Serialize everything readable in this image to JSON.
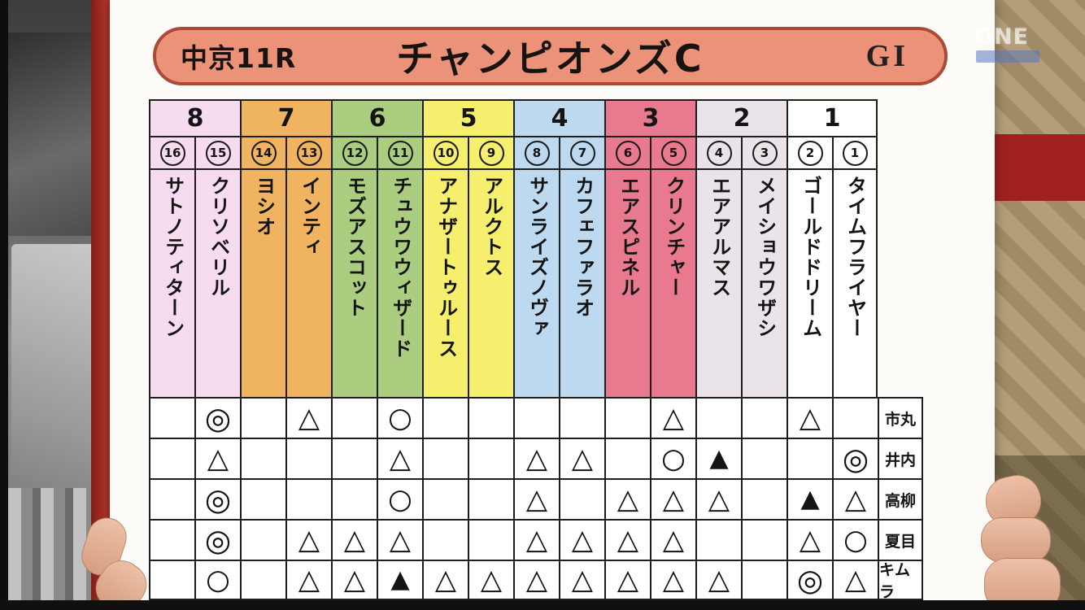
{
  "header": {
    "race": "中京11R",
    "title": "チャンピオンズC",
    "grade": "GI"
  },
  "watermark": {
    "text": "ONE"
  },
  "colors": {
    "header_fill": "#ec9278",
    "header_border": "#ab4a36",
    "board": "#fcfbf8",
    "grid_line": "#1f1f1f"
  },
  "frames": [
    {
      "frame": "8",
      "color": "#f6dcee",
      "horses": [
        {
          "num": "16",
          "name": "サトノティターン"
        },
        {
          "num": "15",
          "name": "クリソベリル"
        }
      ]
    },
    {
      "frame": "7",
      "color": "#f0b461",
      "horses": [
        {
          "num": "14",
          "name": "ヨシオ"
        },
        {
          "num": "13",
          "name": "インティ"
        }
      ]
    },
    {
      "frame": "6",
      "color": "#abcd80",
      "horses": [
        {
          "num": "12",
          "name": "モズアスコット"
        },
        {
          "num": "11",
          "name": "チュウワウィザード"
        }
      ]
    },
    {
      "frame": "5",
      "color": "#f6ef6e",
      "horses": [
        {
          "num": "10",
          "name": "アナザートゥルース"
        },
        {
          "num": "9",
          "name": "アルクトス"
        }
      ]
    },
    {
      "frame": "4",
      "color": "#bdd9ef",
      "horses": [
        {
          "num": "8",
          "name": "サンライズノヴァ"
        },
        {
          "num": "7",
          "name": "カフェファラオ"
        }
      ]
    },
    {
      "frame": "3",
      "color": "#e8798f",
      "horses": [
        {
          "num": "6",
          "name": "エアスピネル"
        },
        {
          "num": "5",
          "name": "クリンチャー"
        }
      ]
    },
    {
      "frame": "2",
      "color": "#eae3e9",
      "horses": [
        {
          "num": "4",
          "name": "エアアルマス"
        },
        {
          "num": "3",
          "name": "メイショウワザシ"
        }
      ]
    },
    {
      "frame": "1",
      "color": "#ffffff",
      "horses": [
        {
          "num": "2",
          "name": "ゴールドドリーム"
        },
        {
          "num": "1",
          "name": "タイムフライヤー"
        }
      ]
    }
  ],
  "predictions": [
    {
      "pundit": "市丸",
      "cells": [
        "",
        "◎",
        "",
        "△",
        "",
        "○",
        "",
        "",
        "",
        "",
        "",
        "△",
        "",
        "",
        "△",
        ""
      ]
    },
    {
      "pundit": "井内",
      "cells": [
        "",
        "△",
        "",
        "",
        "",
        "△",
        "",
        "",
        "△",
        "△",
        "",
        "○",
        "▲",
        "",
        "",
        "◎"
      ]
    },
    {
      "pundit": "高柳",
      "cells": [
        "",
        "◎",
        "",
        "",
        "",
        "○",
        "",
        "",
        "△",
        "",
        "△",
        "△",
        "△",
        "",
        "▲",
        "△"
      ]
    },
    {
      "pundit": "夏目",
      "cells": [
        "",
        "◎",
        "",
        "△",
        "△",
        "△",
        "",
        "",
        "△",
        "△",
        "△",
        "△",
        "",
        "",
        "△",
        "○"
      ]
    },
    {
      "pundit": "キムラ",
      "cells": [
        "",
        "○",
        "",
        "△",
        "△",
        "▲",
        "△",
        "△",
        "△",
        "△",
        "△",
        "△",
        "△",
        "",
        "◎",
        "△"
      ]
    }
  ]
}
